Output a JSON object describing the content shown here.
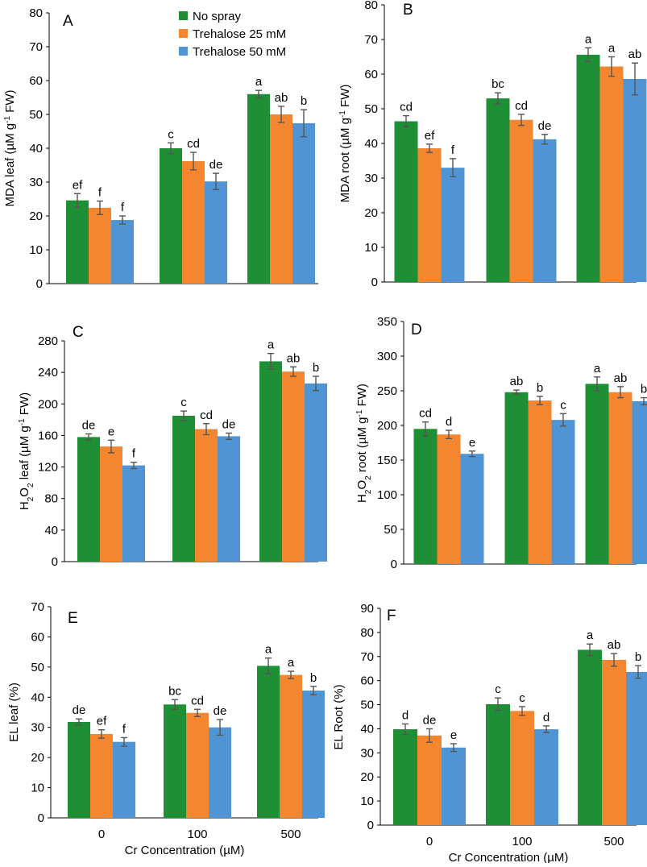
{
  "figure": {
    "xlabel": "Cr Concentration (µM)",
    "categories": [
      "0",
      "100",
      "500"
    ],
    "legend": [
      "No spray",
      "Trehalose 25 mM",
      "Trehalose 50 mM"
    ],
    "colors": [
      "#1e8f34",
      "#f58630",
      "#4f95d6"
    ]
  },
  "chart_data": [
    {
      "type": "bar",
      "panel": "A",
      "ylabel": {
        "main": "MDA leaf (µM g",
        "sup": "-1",
        "tail": " FW)"
      },
      "ylim": [
        0,
        80
      ],
      "yticks": [
        0,
        10,
        20,
        30,
        40,
        50,
        60,
        70,
        80
      ],
      "categories": [
        "0",
        "100",
        "500"
      ],
      "series": [
        {
          "name": "No spray",
          "values": [
            24.6,
            40.0,
            56.0
          ],
          "errors": [
            2.0,
            1.6,
            1.1
          ],
          "letters": [
            "ef",
            "c",
            "a"
          ]
        },
        {
          "name": "Trehalose 25 mM",
          "values": [
            22.4,
            36.2,
            50.0
          ],
          "errors": [
            2.0,
            2.6,
            2.4
          ],
          "letters": [
            "f",
            "cd",
            "ab"
          ]
        },
        {
          "name": "Trehalose 50 mM",
          "values": [
            18.8,
            30.2,
            47.4
          ],
          "errors": [
            1.2,
            2.4,
            4.0
          ],
          "letters": [
            "f",
            "de",
            "b"
          ]
        }
      ],
      "legend": true
    },
    {
      "type": "bar",
      "panel": "B",
      "ylabel": {
        "main": "MDA root (µM g",
        "sup": "-1",
        "tail": " FW)"
      },
      "ylim": [
        0,
        80
      ],
      "yticks": [
        0,
        10,
        20,
        30,
        40,
        50,
        60,
        70,
        80
      ],
      "categories": [
        "0",
        "100",
        "500"
      ],
      "series": [
        {
          "name": "No spray",
          "values": [
            46.4,
            53.0,
            65.6
          ],
          "errors": [
            1.6,
            1.6,
            2.0
          ],
          "letters": [
            "cd",
            "bc",
            "a"
          ]
        },
        {
          "name": "Trehalose 25 mM",
          "values": [
            38.6,
            46.8,
            62.2
          ],
          "errors": [
            1.2,
            1.6,
            2.8
          ],
          "letters": [
            "ef",
            "cd",
            "a"
          ]
        },
        {
          "name": "Trehalose 50 mM",
          "values": [
            33.0,
            41.2,
            58.6
          ],
          "errors": [
            2.6,
            1.4,
            4.6
          ],
          "letters": [
            "f",
            "de",
            "ab"
          ]
        }
      ]
    },
    {
      "type": "bar",
      "panel": "C",
      "ylabel": {
        "main": "H",
        "sub": "2",
        "mid": "O",
        "sub2": "2",
        "rest": " leaf (µM g",
        "sup": "-1",
        "tail": " FW)"
      },
      "ylim": [
        0,
        280
      ],
      "yticks": [
        0,
        40,
        80,
        120,
        160,
        200,
        240,
        280
      ],
      "categories": [
        "0",
        "100",
        "500"
      ],
      "series": [
        {
          "name": "No spray",
          "values": [
            158,
            185,
            254
          ],
          "errors": [
            4,
            6,
            10
          ],
          "letters": [
            "de",
            "c",
            "a"
          ]
        },
        {
          "name": "Trehalose 25 mM",
          "values": [
            146,
            168,
            241
          ],
          "errors": [
            8,
            7,
            6
          ],
          "letters": [
            "e",
            "cd",
            "ab"
          ]
        },
        {
          "name": "Trehalose 50 mM",
          "values": [
            122,
            159,
            226
          ],
          "errors": [
            4,
            4,
            9
          ],
          "letters": [
            "f",
            "de",
            "b"
          ]
        }
      ]
    },
    {
      "type": "bar",
      "panel": "D",
      "ylabel": {
        "main": "H",
        "sub": "2",
        "mid": "O",
        "sub2": "2",
        "rest": " root (µM g",
        "sup": "-1",
        "tail": " FW)"
      },
      "ylim": [
        0,
        350
      ],
      "yticks": [
        0,
        50,
        100,
        150,
        200,
        250,
        300,
        350
      ],
      "categories": [
        "0",
        "100",
        "500"
      ],
      "series": [
        {
          "name": "No spray",
          "values": [
            195,
            248,
            260
          ],
          "errors": [
            10,
            3,
            10
          ],
          "letters": [
            "cd",
            "ab",
            "a"
          ]
        },
        {
          "name": "Trehalose 25 mM",
          "values": [
            187,
            236,
            248
          ],
          "errors": [
            6,
            6,
            8
          ],
          "letters": [
            "d",
            "b",
            "ab"
          ]
        },
        {
          "name": "Trehalose 50 mM",
          "values": [
            159,
            208,
            235
          ],
          "errors": [
            4,
            9,
            5
          ],
          "letters": [
            "e",
            "c",
            "b"
          ]
        }
      ]
    },
    {
      "type": "bar",
      "panel": "E",
      "ylabel": {
        "main": "EL leaf (%)"
      },
      "ylim": [
        0,
        70
      ],
      "yticks": [
        0,
        10,
        20,
        30,
        40,
        50,
        60,
        70
      ],
      "categories": [
        "0",
        "100",
        "500"
      ],
      "xlabel": "Cr Concentration (µM)",
      "series": [
        {
          "name": "No spray",
          "values": [
            31.8,
            37.6,
            50.4
          ],
          "errors": [
            1.0,
            1.6,
            2.6
          ],
          "letters": [
            "de",
            "bc",
            "a"
          ]
        },
        {
          "name": "Trehalose 25 mM",
          "values": [
            27.8,
            34.8,
            47.4
          ],
          "errors": [
            1.4,
            1.2,
            1.2
          ],
          "letters": [
            "ef",
            "cd",
            "a"
          ]
        },
        {
          "name": "Trehalose 50 mM",
          "values": [
            25.2,
            30.0,
            42.2
          ],
          "errors": [
            1.4,
            2.6,
            1.4
          ],
          "letters": [
            "f",
            "de",
            "b"
          ]
        }
      ]
    },
    {
      "type": "bar",
      "panel": "F",
      "ylabel": {
        "main": "EL Root (%)"
      },
      "ylim": [
        0,
        90
      ],
      "yticks": [
        0,
        10,
        20,
        30,
        40,
        50,
        60,
        70,
        80,
        90
      ],
      "categories": [
        "0",
        "100",
        "500"
      ],
      "xlabel": "Cr Concentration (µM)",
      "series": [
        {
          "name": "No spray",
          "values": [
            39.8,
            50.2,
            72.8
          ],
          "errors": [
            2.2,
            2.6,
            2.4
          ],
          "letters": [
            "d",
            "c",
            "a"
          ]
        },
        {
          "name": "Trehalose 25 mM",
          "values": [
            37.2,
            47.4,
            68.6
          ],
          "errors": [
            2.8,
            1.8,
            2.6
          ],
          "letters": [
            "de",
            "c",
            "ab"
          ]
        },
        {
          "name": "Trehalose 50 mM",
          "values": [
            32.2,
            39.8,
            63.6
          ],
          "errors": [
            1.6,
            1.4,
            2.6
          ],
          "letters": [
            "e",
            "d",
            "b"
          ]
        }
      ]
    }
  ]
}
